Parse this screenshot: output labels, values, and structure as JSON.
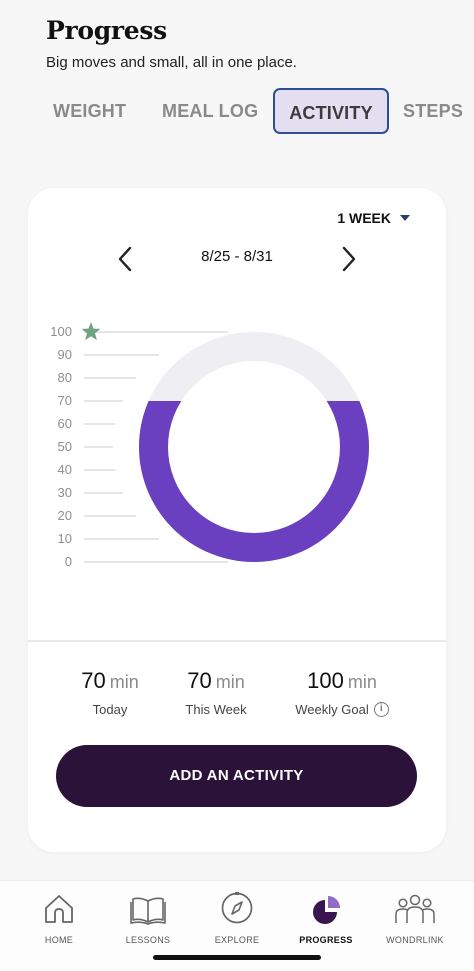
{
  "header": {
    "title": "Progress",
    "subtitle": "Big moves and small, all in one place."
  },
  "tabs": [
    {
      "label": "WEIGHT",
      "active": false
    },
    {
      "label": "MEAL LOG",
      "active": false
    },
    {
      "label": "ACTIVITY",
      "active": true
    },
    {
      "label": "STEPS",
      "active": false
    }
  ],
  "card": {
    "range_label": "1 WEEK",
    "date_range": "8/25 - 8/31",
    "stats": [
      {
        "value": "70",
        "unit": "min",
        "label": "Today"
      },
      {
        "value": "70",
        "unit": "min",
        "label": "This Week"
      },
      {
        "value": "100",
        "unit": "min",
        "label": "Weekly Goal"
      }
    ],
    "add_button": "ADD AN ACTIVITY"
  },
  "chart_data": {
    "type": "gauge",
    "scale_ticks": [
      "100",
      "90",
      "80",
      "70",
      "60",
      "50",
      "40",
      "30",
      "20",
      "10",
      "0"
    ],
    "value": 70,
    "goal": 100,
    "min": 0,
    "max": 100,
    "colors": {
      "fill": "#6a3fc0",
      "track": "#efeef3",
      "tick_line": "#e6e6e6",
      "goal_star": "#6fa37f"
    }
  },
  "bottom_nav": [
    {
      "label": "HOME",
      "icon": "home-icon",
      "active": false
    },
    {
      "label": "LESSONS",
      "icon": "book-icon",
      "active": false
    },
    {
      "label": "EXPLORE",
      "icon": "compass-icon",
      "active": false
    },
    {
      "label": "PROGRESS",
      "icon": "pie-chart-icon",
      "active": true
    },
    {
      "label": "WONDRLINK",
      "icon": "community-icon",
      "active": false
    }
  ],
  "colors": {
    "accent": "#6a3fc0",
    "button": "#2b1238",
    "tab_active_bg": "#e3def0",
    "tab_active_border": "#2f4e93"
  }
}
